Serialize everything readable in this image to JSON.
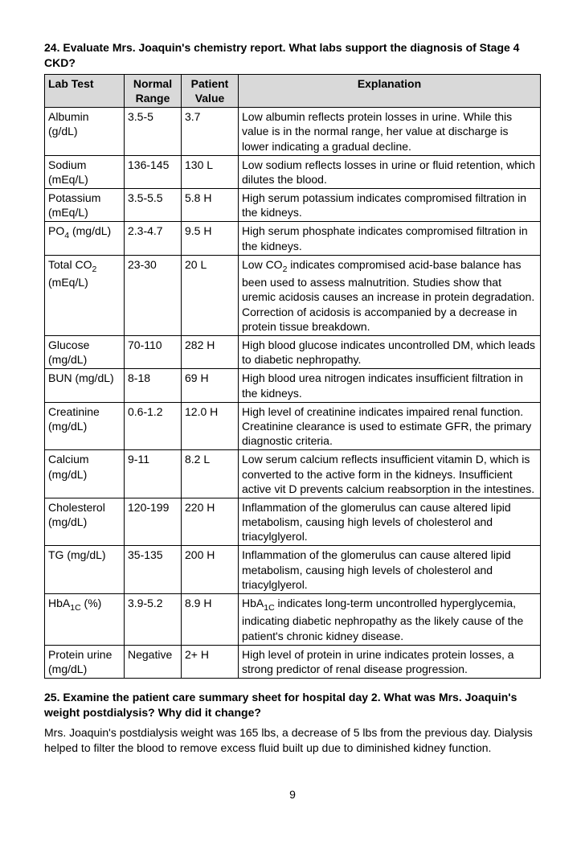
{
  "q24": "24. Evaluate Mrs. Joaquin's chemistry report.  What labs support the diagnosis of Stage 4 CKD?",
  "headers": {
    "lab": "Lab Test",
    "nr": "Normal Range",
    "pv": "Patient Value",
    "ex": "Explanation"
  },
  "rows": [
    {
      "lab": "Albumin (g/dL)",
      "nr": "3.5-5",
      "pv": "3.7",
      "ex": "Low albumin reflects protein losses in urine. While this value is in the normal range, her value at discharge is lower indicating a gradual decline."
    },
    {
      "lab": "Sodium (mEq/L)",
      "nr": "136-145",
      "pv": "130 L",
      "ex": "Low sodium reflects losses in urine or fluid retention, which dilutes the blood."
    },
    {
      "lab": "Potassium (mEq/L)",
      "nr": "3.5-5.5",
      "pv": "5.8 H",
      "ex": "High serum potassium indicates compromised filtration in the kidneys."
    },
    {
      "lab": "PO4 (mg/dL)",
      "lab_html": "PO<sub>4</sub> (mg/dL)",
      "nr": "2.3-4.7",
      "pv": "9.5 H",
      "ex": "High serum phosphate indicates compromised filtration in the kidneys."
    },
    {
      "lab": "Total CO2 (mEq/L)",
      "lab_html": "Total CO<sub>2</sub> (mEq/L)",
      "nr": "23-30",
      "pv": "20 L",
      "ex": "Low CO2 indicates compromised acid-base balance has been used to assess malnutrition. Studies show that uremic acidosis causes an increase in protein degradation. Correction of acidosis is accompanied by a decrease in protein tissue breakdown.",
      "ex_html": "Low CO<sub>2</sub> indicates compromised acid-base balance has been used to assess malnutrition. Studies show that uremic acidosis causes an increase in protein degradation. Correction of acidosis is accompanied by a decrease in protein tissue breakdown."
    },
    {
      "lab": "Glucose (mg/dL)",
      "nr": "70-110",
      "pv": "282 H",
      "ex": "High blood glucose indicates uncontrolled DM, which leads to diabetic nephropathy."
    },
    {
      "lab": "BUN (mg/dL)",
      "nr": "8-18",
      "pv": "69 H",
      "ex": "High blood urea nitrogen indicates insufficient filtration in the kidneys."
    },
    {
      "lab": "Creatinine (mg/dL)",
      "nr": "0.6-1.2",
      "pv": "12.0 H",
      "ex": "High level of creatinine indicates impaired renal function. Creatinine clearance is used to estimate GFR, the primary diagnostic criteria."
    },
    {
      "lab": "Calcium (mg/dL)",
      "nr": "9-11",
      "pv": "8.2 L",
      "ex": "Low serum calcium reflects insufficient vitamin D, which is converted to the active form in the kidneys.  Insufficient active vit D prevents calcium reabsorption in the intestines."
    },
    {
      "lab": "Cholesterol (mg/dL)",
      "nr": "120-199",
      "pv": "220 H",
      "ex": "Inflammation of the glomerulus can cause altered lipid metabolism, causing high levels of cholesterol and triacylglyerol."
    },
    {
      "lab": "TG (mg/dL)",
      "nr": "35-135",
      "pv": "200 H",
      "ex": "Inflammation of the glomerulus can cause altered lipid metabolism, causing high levels of cholesterol and triacylglyerol."
    },
    {
      "lab": "HbA1C (%)",
      "lab_html": "HbA<sub>1C</sub> (%)",
      "nr": "3.9-5.2",
      "pv": "8.9 H",
      "ex": "HbA1C indicates long-term uncontrolled hyperglycemia, indicating diabetic nephropathy as the likely cause of the patient's chronic kidney disease.",
      "ex_html": "HbA<sub>1C</sub> indicates long-term uncontrolled hyperglycemia, indicating diabetic nephropathy as the likely cause of the patient's chronic kidney disease."
    },
    {
      "lab": "Protein urine (mg/dL)",
      "nr": "Negative",
      "pv": "2+ H",
      "ex": "High level of protein in urine indicates protein losses, a strong predictor of renal disease progression."
    }
  ],
  "q25": "25. Examine the patient care summary sheet for hospital day 2. What was Mrs. Joaquin's weight postdialysis?  Why did it change?",
  "a25": "Mrs. Joaquin's postdialysis weight was 165 lbs, a decrease of 5 lbs from the previous day. Dialysis helped to filter the blood to remove excess fluid built up due to diminished kidney function.",
  "page": "9"
}
